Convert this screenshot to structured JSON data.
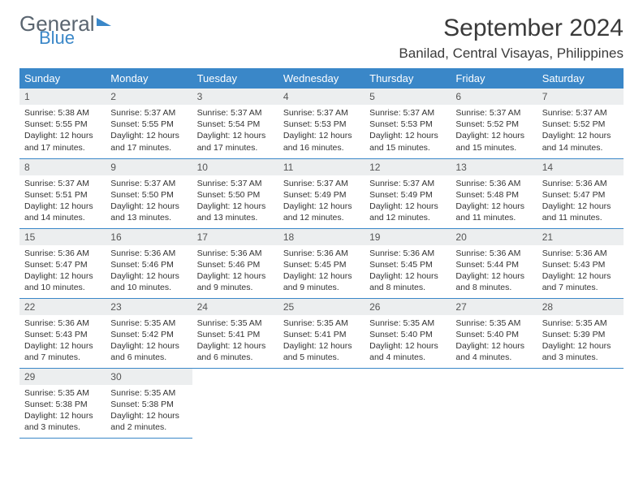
{
  "logo": {
    "general": "General",
    "blue": "Blue"
  },
  "title": "September 2024",
  "location": "Banilad, Central Visayas, Philippines",
  "colors": {
    "header_bg": "#3a87c8",
    "daynum_bg": "#eceeef",
    "rule": "#3a87c8"
  },
  "weekdays": [
    "Sunday",
    "Monday",
    "Tuesday",
    "Wednesday",
    "Thursday",
    "Friday",
    "Saturday"
  ],
  "days": [
    {
      "n": "1",
      "sr": "Sunrise: 5:38 AM",
      "ss": "Sunset: 5:55 PM",
      "dl": "Daylight: 12 hours and 17 minutes."
    },
    {
      "n": "2",
      "sr": "Sunrise: 5:37 AM",
      "ss": "Sunset: 5:55 PM",
      "dl": "Daylight: 12 hours and 17 minutes."
    },
    {
      "n": "3",
      "sr": "Sunrise: 5:37 AM",
      "ss": "Sunset: 5:54 PM",
      "dl": "Daylight: 12 hours and 17 minutes."
    },
    {
      "n": "4",
      "sr": "Sunrise: 5:37 AM",
      "ss": "Sunset: 5:53 PM",
      "dl": "Daylight: 12 hours and 16 minutes."
    },
    {
      "n": "5",
      "sr": "Sunrise: 5:37 AM",
      "ss": "Sunset: 5:53 PM",
      "dl": "Daylight: 12 hours and 15 minutes."
    },
    {
      "n": "6",
      "sr": "Sunrise: 5:37 AM",
      "ss": "Sunset: 5:52 PM",
      "dl": "Daylight: 12 hours and 15 minutes."
    },
    {
      "n": "7",
      "sr": "Sunrise: 5:37 AM",
      "ss": "Sunset: 5:52 PM",
      "dl": "Daylight: 12 hours and 14 minutes."
    },
    {
      "n": "8",
      "sr": "Sunrise: 5:37 AM",
      "ss": "Sunset: 5:51 PM",
      "dl": "Daylight: 12 hours and 14 minutes."
    },
    {
      "n": "9",
      "sr": "Sunrise: 5:37 AM",
      "ss": "Sunset: 5:50 PM",
      "dl": "Daylight: 12 hours and 13 minutes."
    },
    {
      "n": "10",
      "sr": "Sunrise: 5:37 AM",
      "ss": "Sunset: 5:50 PM",
      "dl": "Daylight: 12 hours and 13 minutes."
    },
    {
      "n": "11",
      "sr": "Sunrise: 5:37 AM",
      "ss": "Sunset: 5:49 PM",
      "dl": "Daylight: 12 hours and 12 minutes."
    },
    {
      "n": "12",
      "sr": "Sunrise: 5:37 AM",
      "ss": "Sunset: 5:49 PM",
      "dl": "Daylight: 12 hours and 12 minutes."
    },
    {
      "n": "13",
      "sr": "Sunrise: 5:36 AM",
      "ss": "Sunset: 5:48 PM",
      "dl": "Daylight: 12 hours and 11 minutes."
    },
    {
      "n": "14",
      "sr": "Sunrise: 5:36 AM",
      "ss": "Sunset: 5:47 PM",
      "dl": "Daylight: 12 hours and 11 minutes."
    },
    {
      "n": "15",
      "sr": "Sunrise: 5:36 AM",
      "ss": "Sunset: 5:47 PM",
      "dl": "Daylight: 12 hours and 10 minutes."
    },
    {
      "n": "16",
      "sr": "Sunrise: 5:36 AM",
      "ss": "Sunset: 5:46 PM",
      "dl": "Daylight: 12 hours and 10 minutes."
    },
    {
      "n": "17",
      "sr": "Sunrise: 5:36 AM",
      "ss": "Sunset: 5:46 PM",
      "dl": "Daylight: 12 hours and 9 minutes."
    },
    {
      "n": "18",
      "sr": "Sunrise: 5:36 AM",
      "ss": "Sunset: 5:45 PM",
      "dl": "Daylight: 12 hours and 9 minutes."
    },
    {
      "n": "19",
      "sr": "Sunrise: 5:36 AM",
      "ss": "Sunset: 5:45 PM",
      "dl": "Daylight: 12 hours and 8 minutes."
    },
    {
      "n": "20",
      "sr": "Sunrise: 5:36 AM",
      "ss": "Sunset: 5:44 PM",
      "dl": "Daylight: 12 hours and 8 minutes."
    },
    {
      "n": "21",
      "sr": "Sunrise: 5:36 AM",
      "ss": "Sunset: 5:43 PM",
      "dl": "Daylight: 12 hours and 7 minutes."
    },
    {
      "n": "22",
      "sr": "Sunrise: 5:36 AM",
      "ss": "Sunset: 5:43 PM",
      "dl": "Daylight: 12 hours and 7 minutes."
    },
    {
      "n": "23",
      "sr": "Sunrise: 5:35 AM",
      "ss": "Sunset: 5:42 PM",
      "dl": "Daylight: 12 hours and 6 minutes."
    },
    {
      "n": "24",
      "sr": "Sunrise: 5:35 AM",
      "ss": "Sunset: 5:41 PM",
      "dl": "Daylight: 12 hours and 6 minutes."
    },
    {
      "n": "25",
      "sr": "Sunrise: 5:35 AM",
      "ss": "Sunset: 5:41 PM",
      "dl": "Daylight: 12 hours and 5 minutes."
    },
    {
      "n": "26",
      "sr": "Sunrise: 5:35 AM",
      "ss": "Sunset: 5:40 PM",
      "dl": "Daylight: 12 hours and 4 minutes."
    },
    {
      "n": "27",
      "sr": "Sunrise: 5:35 AM",
      "ss": "Sunset: 5:40 PM",
      "dl": "Daylight: 12 hours and 4 minutes."
    },
    {
      "n": "28",
      "sr": "Sunrise: 5:35 AM",
      "ss": "Sunset: 5:39 PM",
      "dl": "Daylight: 12 hours and 3 minutes."
    },
    {
      "n": "29",
      "sr": "Sunrise: 5:35 AM",
      "ss": "Sunset: 5:38 PM",
      "dl": "Daylight: 12 hours and 3 minutes."
    },
    {
      "n": "30",
      "sr": "Sunrise: 5:35 AM",
      "ss": "Sunset: 5:38 PM",
      "dl": "Daylight: 12 hours and 2 minutes."
    }
  ]
}
